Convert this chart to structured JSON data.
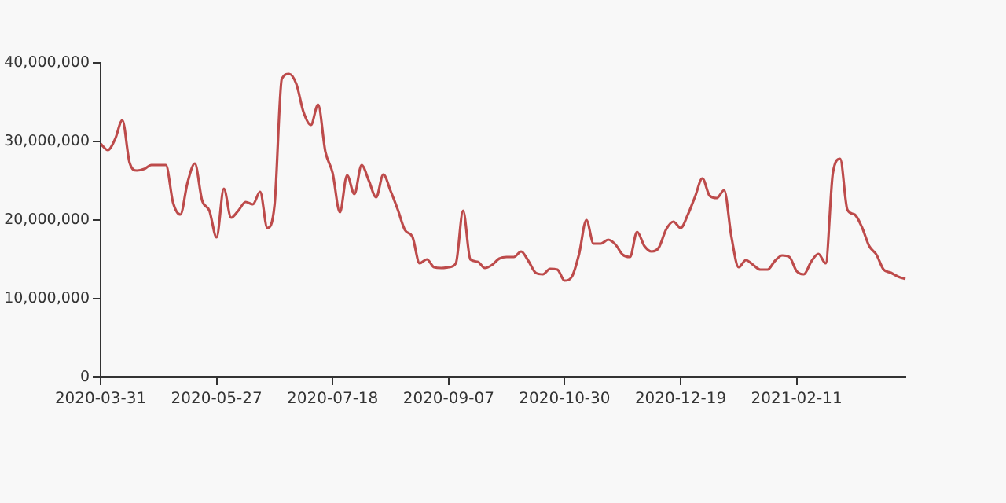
{
  "chart_data": {
    "type": "line",
    "categories": [
      "2020-03-31",
      null,
      null,
      null,
      null,
      null,
      null,
      null,
      null,
      null,
      null,
      null,
      null,
      null,
      null,
      null,
      "2020-05-27",
      null,
      null,
      null,
      null,
      null,
      null,
      null,
      null,
      null,
      null,
      null,
      null,
      null,
      null,
      null,
      "2020-07-18",
      null,
      null,
      null,
      null,
      null,
      null,
      null,
      null,
      null,
      null,
      null,
      null,
      null,
      null,
      null,
      "2020-09-07",
      null,
      null,
      null,
      null,
      null,
      null,
      null,
      null,
      null,
      null,
      null,
      null,
      null,
      null,
      null,
      "2020-10-30",
      null,
      null,
      null,
      null,
      null,
      null,
      null,
      null,
      null,
      null,
      null,
      null,
      null,
      null,
      null,
      "2020-12-19",
      null,
      null,
      null,
      null,
      null,
      null,
      null,
      null,
      null,
      null,
      null,
      null,
      null,
      null,
      null,
      "2021-02-11",
      null,
      null,
      null,
      null,
      null,
      null,
      null,
      null,
      null,
      null,
      null,
      null,
      null,
      null,
      null
    ],
    "series": [
      {
        "color": "#bd4b4b",
        "values": [
          29700000,
          28900000,
          30300000,
          32700000,
          27300000,
          26300000,
          26500000,
          27000000,
          27000000,
          27000000,
          22200000,
          20700000,
          24800000,
          27200000,
          22500000,
          21200000,
          17800000,
          24000000,
          20300000,
          21200000,
          22300000,
          22000000,
          23600000,
          19000000,
          22000000,
          38000000,
          38600000,
          37300000,
          33700000,
          32100000,
          34700000,
          28700000,
          26000000,
          21000000,
          25700000,
          23300000,
          27000000,
          25000000,
          22900000,
          25800000,
          23700000,
          21300000,
          18700000,
          17900000,
          14500000,
          15000000,
          14000000,
          13900000,
          14000000,
          14500000,
          21200000,
          15000000,
          14700000,
          13900000,
          14300000,
          15100000,
          15300000,
          15300000,
          16000000,
          14800000,
          13300000,
          13100000,
          13800000,
          13700000,
          12300000,
          12800000,
          15700000,
          20000000,
          17000000,
          17000000,
          17500000,
          16900000,
          15600000,
          15300000,
          18500000,
          16700000,
          16000000,
          16500000,
          18800000,
          19800000,
          19000000,
          20700000,
          23000000,
          25300000,
          23100000,
          22800000,
          23800000,
          17900000,
          14000000,
          14900000,
          14300000,
          13700000,
          13700000,
          14800000,
          15500000,
          15300000,
          13500000,
          13100000,
          14700000,
          15700000,
          14500000,
          26000000,
          27800000,
          21300000,
          20700000,
          19100000,
          16700000,
          15600000,
          13700000,
          13300000,
          12800000,
          12500000
        ]
      }
    ],
    "ylim": [
      0,
      40000000
    ],
    "yticks": [
      {
        "value": 0,
        "label": "0"
      },
      {
        "value": 10000000,
        "label": "10,000,000"
      },
      {
        "value": 20000000,
        "label": "20,000,000"
      },
      {
        "value": 30000000,
        "label": "30,000,000"
      },
      {
        "value": 40000000,
        "label": "40,000,000"
      }
    ],
    "grid": false,
    "legend": false,
    "marker": "none",
    "line_style": "solid"
  }
}
